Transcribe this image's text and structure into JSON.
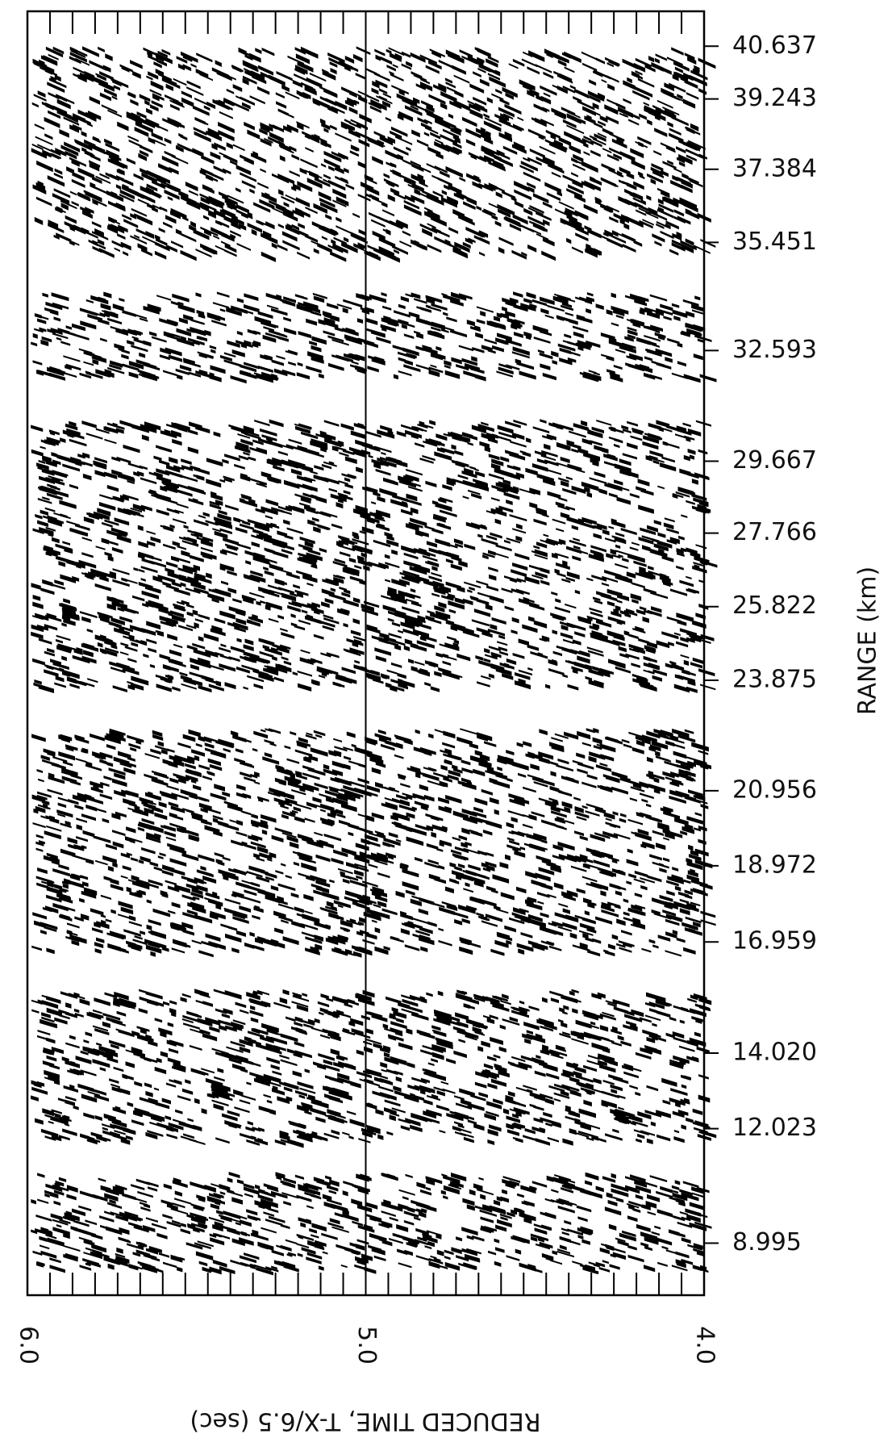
{
  "chart_data": {
    "type": "record-section",
    "xlabel": "REDUCED TIME, T-X/6.5 (sec)",
    "ylabel": "RANGE (km)",
    "xlim": [
      6.0,
      4.0
    ],
    "xticks": [
      {
        "value": 6.0,
        "label": "6.0"
      },
      {
        "value": 5.0,
        "label": "5.0"
      },
      {
        "value": 4.0,
        "label": "4.0"
      }
    ],
    "ylim": [
      7.62,
      41.56
    ],
    "yticks": [
      40.637,
      39.243,
      37.384,
      35.451,
      32.593,
      29.667,
      27.766,
      25.822,
      23.875,
      20.956,
      18.972,
      16.959,
      {
        "value": 14.02,
        "label": "14.020"
      },
      12.023,
      8.995
    ],
    "color": "#000000"
  }
}
